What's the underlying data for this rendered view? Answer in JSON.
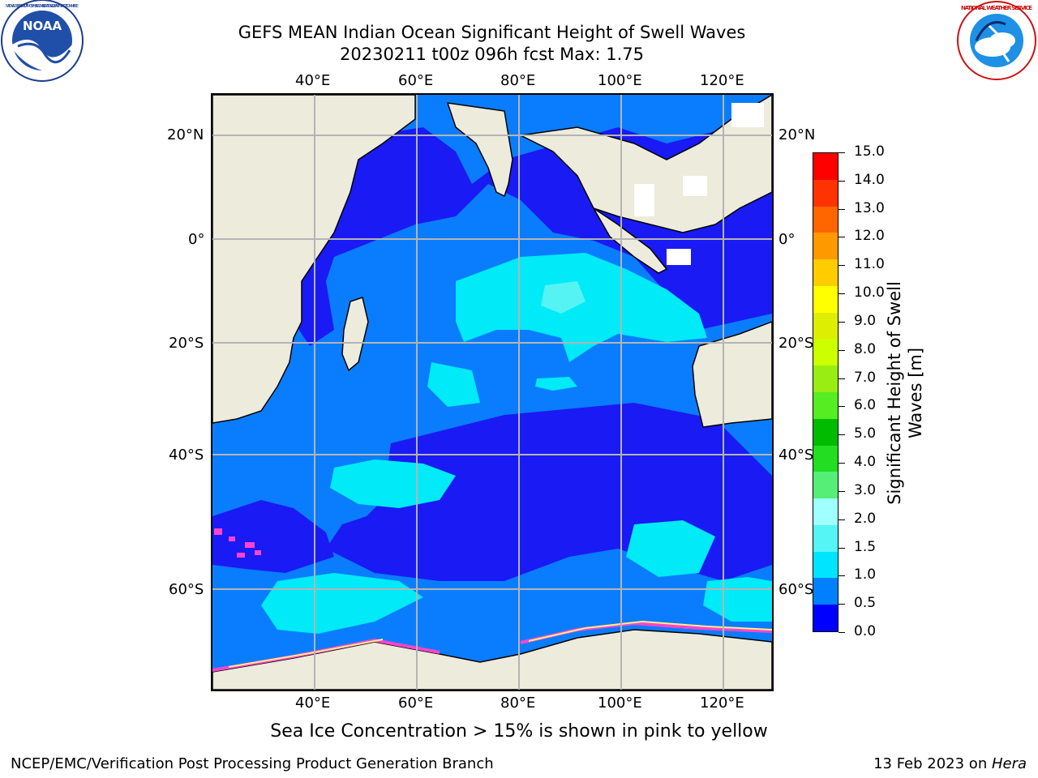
{
  "header": {
    "title_line1": "GEFS MEAN Indian Ocean Significant Height of Swell Waves",
    "title_line2": "20230211 t00z 096h fcst   Max: 1.75"
  },
  "logos": {
    "noaa_text": "NOAA",
    "noaa_ring_text": "NATIONAL OCEANIC AND ATMOSPHERIC ADMINISTRATION · U.S. DEPARTMENT OF COMMERCE",
    "nws_ring_text": "NATIONAL WEATHER SERVICE"
  },
  "map": {
    "lon_labels": [
      "40°E",
      "60°E",
      "80°E",
      "100°E",
      "120°E"
    ],
    "lat_labels": [
      "20°N",
      "0°",
      "20°S",
      "40°S",
      "60°S"
    ]
  },
  "colorbar": {
    "label_line1": "Significant Height of Swell",
    "label_line2": "Waves [m]",
    "ticks": [
      "0.0",
      "0.5",
      "1.0",
      "1.5",
      "2.0",
      "3.0",
      "4.0",
      "5.0",
      "6.0",
      "7.0",
      "8.0",
      "9.0",
      "10.0",
      "11.0",
      "12.0",
      "13.0",
      "14.0",
      "15.0"
    ],
    "colors": [
      "#0000ff",
      "#0080ff",
      "#00e5ff",
      "#55f5f5",
      "#a0ffff",
      "#55ee77",
      "#22dd22",
      "#00bb00",
      "#55ee22",
      "#99ee11",
      "#ccff00",
      "#ddee00",
      "#ffff00",
      "#ffcc00",
      "#ff9900",
      "#ff6600",
      "#ff3300",
      "#ff0000"
    ]
  },
  "footer": {
    "note": "Sea Ice Concentration > 15% is shown in pink to yellow",
    "left": "NCEP/EMC/Verification Post Processing Product Generation Branch",
    "right_date": "13 Feb 2023 on ",
    "right_machine": "Hera"
  }
}
